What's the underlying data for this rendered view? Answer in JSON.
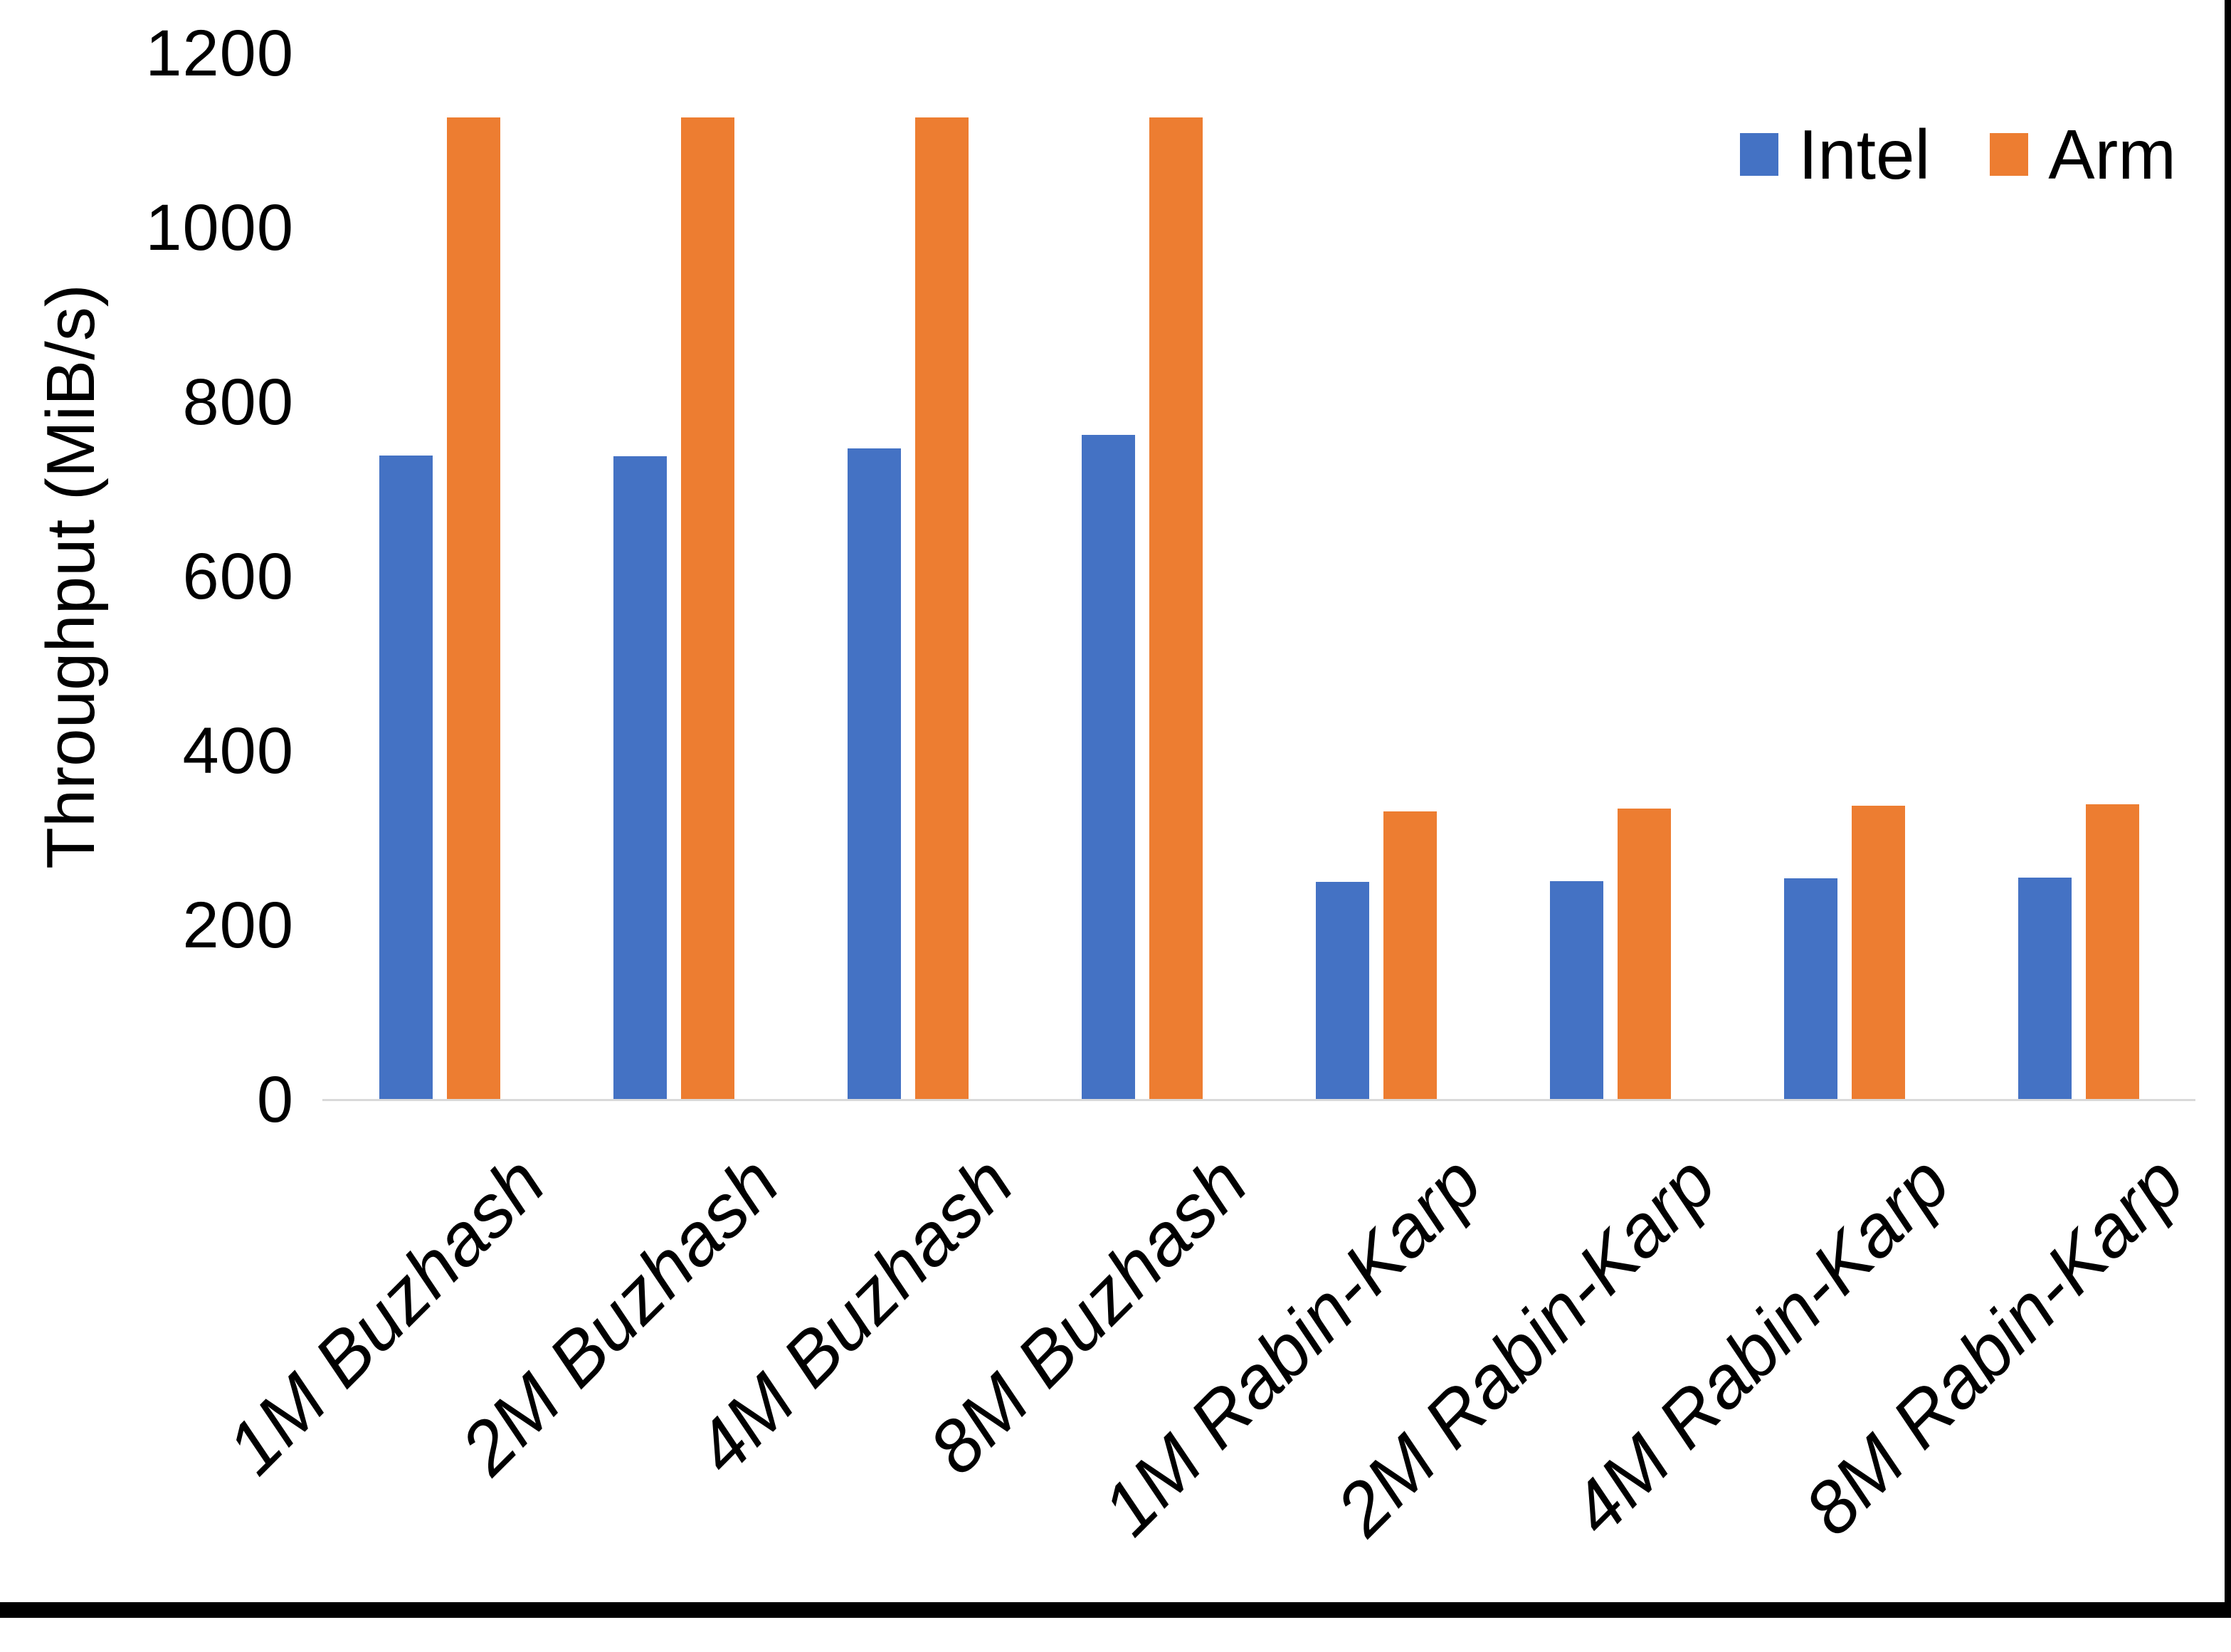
{
  "chart_data": {
    "type": "bar",
    "title": "",
    "categories": [
      "1M Buzhash",
      "2M Buzhash",
      "4M Buzhash",
      "8M Buzhash",
      "1M Rabin-Karp",
      "2M Rabin-Karp",
      "4M Rabin-Karp",
      "8M Rabin-Karp"
    ],
    "series": [
      {
        "name": "Intel",
        "color": "#4472c4",
        "values": [
          738,
          737,
          746,
          762,
          249,
          250,
          253,
          254
        ]
      },
      {
        "name": "Arm",
        "color": "#ed7d31",
        "values": [
          1126,
          1126,
          1126,
          1126,
          330,
          333,
          336,
          338
        ]
      }
    ],
    "xlabel": "",
    "ylabel": "Throughput (MiB/s)",
    "ylim": [
      0,
      1200
    ],
    "yticks": [
      0,
      200,
      400,
      600,
      800,
      1000,
      1200
    ],
    "grid": false,
    "legend_position": "top-right"
  },
  "colors": {
    "intel": "#4472c4",
    "arm": "#ed7d31",
    "axis_line": "#d9d9d9",
    "text": "#000000",
    "window_edge": "#000000"
  }
}
